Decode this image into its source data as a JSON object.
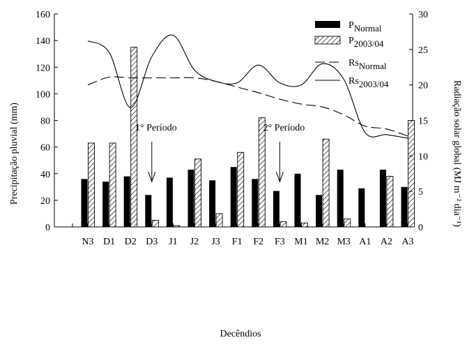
{
  "chart_data": {
    "type": "bar",
    "xlabel": "Decêndios",
    "ylabel_left": "Precipitação pluvial (mm)",
    "ylabel_right": "Radiação solar global (MJ m⁻² dia⁻¹)",
    "ylim_left": [
      0,
      160
    ],
    "ylim_right": [
      0,
      30
    ],
    "yticks_left": [
      "0",
      "20",
      "40",
      "60",
      "80",
      "100",
      "120",
      "140",
      "160"
    ],
    "yticks_right": [
      "0",
      "5",
      "10",
      "15",
      "20",
      "25",
      "30"
    ],
    "categories": [
      "N3",
      "D1",
      "D2",
      "D3",
      "J1",
      "J2",
      "J3",
      "F1",
      "F2",
      "F3",
      "M1",
      "M2",
      "M3",
      "A1",
      "A2",
      "A3"
    ],
    "series": [
      {
        "name": "P Normal",
        "kind": "bar",
        "axis": "left",
        "style": "solid",
        "values": [
          36,
          34,
          38,
          24,
          37,
          43,
          35,
          45,
          36,
          27,
          40,
          24,
          43,
          29,
          43,
          30
        ]
      },
      {
        "name": "P 2003/04",
        "kind": "bar",
        "axis": "left",
        "style": "hatched",
        "values": [
          63,
          63,
          135,
          5,
          1,
          51,
          10,
          56,
          82,
          4,
          3,
          66,
          6,
          0,
          38,
          80
        ]
      },
      {
        "name": "Rs Normal",
        "kind": "line",
        "axis": "right",
        "style": "dashed",
        "values": [
          20.0,
          21.1,
          21.0,
          21.0,
          21.0,
          21.0,
          20.5,
          19.7,
          18.9,
          18.0,
          17.3,
          16.9,
          15.8,
          14.2,
          13.8,
          12.8
        ]
      },
      {
        "name": "Rs 2003/04",
        "kind": "line",
        "axis": "right",
        "style": "solid",
        "values": [
          26.2,
          24.6,
          16.8,
          24.0,
          27.0,
          22.1,
          20.5,
          20.3,
          22.8,
          20.3,
          20.0,
          23.0,
          20.8,
          13.3,
          13.0,
          12.5
        ]
      }
    ],
    "legend": {
      "position": "top-right",
      "entries": [
        {
          "base": "P",
          "sub": "Normal"
        },
        {
          "base": "P",
          "sub": "2003/04"
        },
        {
          "base": "Rs",
          "sub": "Normal"
        },
        {
          "base": "Rs",
          "sub": "2003/04"
        }
      ]
    },
    "annotations": [
      {
        "text": "1° Período",
        "category": "D3",
        "arrow_from": 64,
        "arrow_to": 34
      },
      {
        "text": "2° Período",
        "category": "F3",
        "arrow_from": 64,
        "arrow_to": 34
      }
    ],
    "colors": {
      "bar_normal": "#000000",
      "hatch": "#000000",
      "line": "#000000"
    }
  }
}
